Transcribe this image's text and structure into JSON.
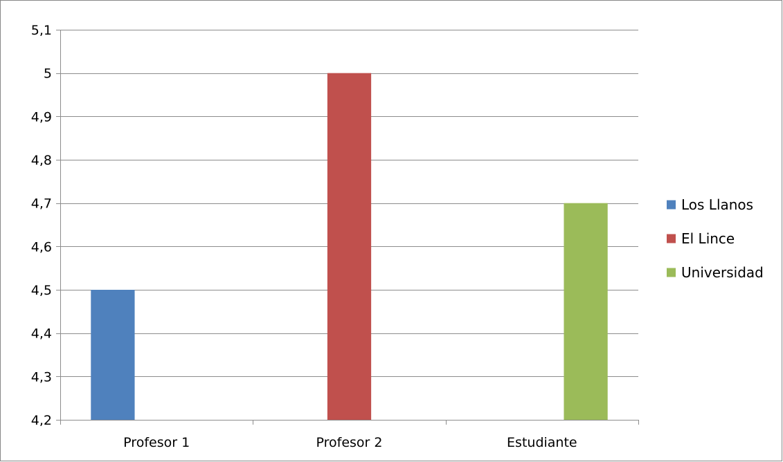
{
  "chart_data": {
    "type": "bar",
    "title": "",
    "xlabel": "",
    "ylabel": "",
    "categories": [
      "Profesor 1",
      "Profesor 2",
      "Estudiante"
    ],
    "series": [
      {
        "name": "Los Llanos",
        "values": [
          4.5,
          null,
          null
        ],
        "color": "#4F81BD"
      },
      {
        "name": "El Lince",
        "values": [
          null,
          5.0,
          null
        ],
        "color": "#C0504D"
      },
      {
        "name": "Universidad",
        "values": [
          null,
          null,
          4.7
        ],
        "color": "#9BBB59"
      }
    ],
    "ylim": [
      4.2,
      5.1
    ],
    "yticks": [
      "4,2",
      "4,3",
      "4,4",
      "4,5",
      "4,6",
      "4,7",
      "4,8",
      "4,9",
      "5",
      "5,1"
    ],
    "grid": "horizontal",
    "legend_position": "right"
  },
  "colors": {
    "gridline": "#8C8C8C",
    "axis": "#8C8C8C",
    "frame": "#878787"
  }
}
